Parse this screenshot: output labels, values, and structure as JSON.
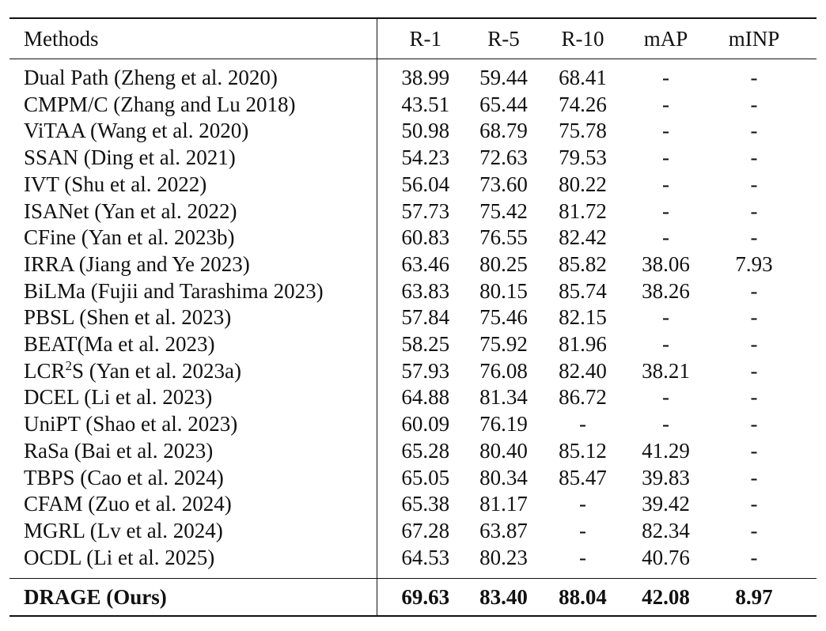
{
  "table": {
    "headers": [
      "Methods",
      "R-1",
      "R-5",
      "R-10",
      "mAP",
      "mINP"
    ],
    "rows": [
      {
        "method": "Dual Path (Zheng et al. 2020)",
        "r1": "38.99",
        "r5": "59.44",
        "r10": "68.41",
        "map": "-",
        "minp": "-"
      },
      {
        "method": "CMPM/C (Zhang and Lu 2018)",
        "r1": "43.51",
        "r5": "65.44",
        "r10": "74.26",
        "map": "-",
        "minp": "-"
      },
      {
        "method": "ViTAA (Wang et al. 2020)",
        "r1": "50.98",
        "r5": "68.79",
        "r10": "75.78",
        "map": "-",
        "minp": "-"
      },
      {
        "method": "SSAN (Ding et al. 2021)",
        "r1": "54.23",
        "r5": "72.63",
        "r10": "79.53",
        "map": "-",
        "minp": "-"
      },
      {
        "method": "IVT (Shu et al. 2022)",
        "r1": "56.04",
        "r5": "73.60",
        "r10": "80.22",
        "map": "-",
        "minp": "-"
      },
      {
        "method": "ISANet (Yan et al. 2022)",
        "r1": "57.73",
        "r5": "75.42",
        "r10": "81.72",
        "map": "-",
        "minp": "-"
      },
      {
        "method": "CFine (Yan et al. 2023b)",
        "r1": "60.83",
        "r5": "76.55",
        "r10": "82.42",
        "map": "-",
        "minp": "-"
      },
      {
        "method": "IRRA (Jiang and Ye 2023)",
        "r1": "63.46",
        "r5": "80.25",
        "r10": "85.82",
        "map": "38.06",
        "minp": "7.93"
      },
      {
        "method": "BiLMa (Fujii and Tarashima 2023)",
        "r1": "63.83",
        "r5": "80.15",
        "r10": "85.74",
        "map": "38.26",
        "minp": "-"
      },
      {
        "method": "PBSL (Shen et al. 2023)",
        "r1": "57.84",
        "r5": "75.46",
        "r10": "82.15",
        "map": "-",
        "minp": "-"
      },
      {
        "method": "BEAT(Ma et al. 2023)",
        "r1": "58.25",
        "r5": "75.92",
        "r10": "81.96",
        "map": "-",
        "minp": "-"
      },
      {
        "method_prefix": "LCR",
        "method_sup": "2",
        "method_suffix": "S (Yan et al. 2023a)",
        "r1": "57.93",
        "r5": "76.08",
        "r10": "82.40",
        "map": "38.21",
        "minp": "-"
      },
      {
        "method": "DCEL (Li et al. 2023)",
        "r1": "64.88",
        "r5": "81.34",
        "r10": "86.72",
        "map": "-",
        "minp": "-"
      },
      {
        "method": "UniPT (Shao et al. 2023)",
        "r1": "60.09",
        "r5": "76.19",
        "r10": "-",
        "map": "-",
        "minp": "-"
      },
      {
        "method": "RaSa (Bai et al. 2023)",
        "r1": "65.28",
        "r5": "80.40",
        "r10": "85.12",
        "map": "41.29",
        "minp": "-"
      },
      {
        "method": "TBPS (Cao et al. 2024)",
        "r1": "65.05",
        "r5": "80.34",
        "r10": "85.47",
        "map": "39.83",
        "minp": "-"
      },
      {
        "method": "CFAM  (Zuo et al. 2024)",
        "r1": "65.38",
        "r5": "81.17",
        "r10": "-",
        "map": "39.42",
        "minp": "-"
      },
      {
        "method": "MGRL  (Lv et al. 2024)",
        "r1": "67.28",
        "r5": "63.87",
        "r10": "-",
        "map": "82.34",
        "minp": "-"
      },
      {
        "method": "OCDL  (Li et al. 2025)",
        "r1": "64.53",
        "r5": "80.23",
        "r10": "-",
        "map": "40.76",
        "minp": "-"
      }
    ],
    "ours": {
      "method": "DRAGE (Ours)",
      "r1": "69.63",
      "r5": "83.40",
      "r10": "88.04",
      "map": "42.08",
      "minp": "8.97"
    }
  }
}
